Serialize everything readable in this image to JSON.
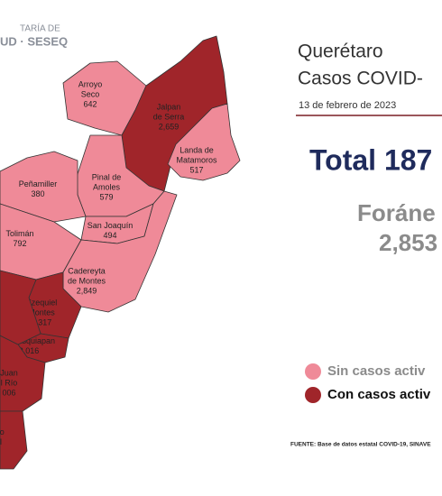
{
  "header": {
    "line1": "TARÍA DE",
    "line2": "UD · SESEQ"
  },
  "title": "Querétaro",
  "subtitle": "Casos COVID-",
  "date": "13 de febrero de 2023",
  "total": "Total 187",
  "foraneos_label": "Foráne",
  "foraneos_value": "2,853",
  "legend": [
    {
      "label": "Sin casos activ",
      "color": "#ef8a98"
    },
    {
      "label": "Con casos activ",
      "color": "#a0252a"
    }
  ],
  "source": "FUENTE:  Base de datos estatal  COVID-19,  SINAVE",
  "municipalities": [
    {
      "name": [
        "Arroyo",
        "Seco"
      ],
      "value": "642",
      "color": "#ef8a98"
    },
    {
      "name": [
        "Jalpan",
        "de Serra"
      ],
      "value": "2,659",
      "color": "#a0252a"
    },
    {
      "name": [
        "Landa de",
        "Matamoros"
      ],
      "value": "517",
      "color": "#ef8a98"
    },
    {
      "name": [
        "Pinal de",
        "Amoles"
      ],
      "value": "579",
      "color": "#ef8a98"
    },
    {
      "name": [
        "Peñamiller"
      ],
      "value": "380",
      "color": "#ef8a98"
    },
    {
      "name": [
        "San Joaquín"
      ],
      "value": "494",
      "color": "#ef8a98"
    },
    {
      "name": [
        "Tolimán"
      ],
      "value": "792",
      "color": "#ef8a98"
    },
    {
      "name": [
        "Cadereyta",
        "de Montes"
      ],
      "value": "2,849",
      "color": "#ef8a98"
    },
    {
      "name": [
        "Ezequiel",
        "Montes"
      ],
      "value": "1,317",
      "color": "#a0252a"
    },
    {
      "name": [
        "Tequisquiapan"
      ],
      "value": "2,016",
      "color": "#a0252a"
    },
    {
      "name": [
        "Juan",
        "l Río"
      ],
      "value": "006",
      "color": "#a0252a"
    },
    {
      "name": [
        "co",
        "il"
      ],
      "value": null,
      "color": "#a0252a"
    },
    {
      "name": [],
      "value": null,
      "color": "#a0252a"
    }
  ]
}
